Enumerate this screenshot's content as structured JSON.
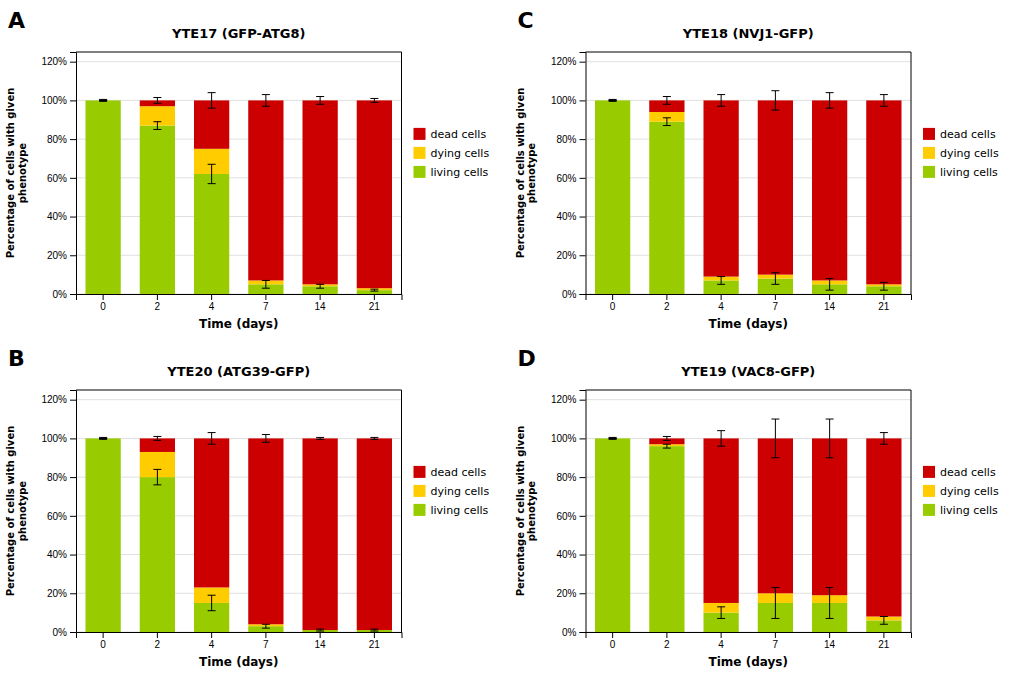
{
  "chart_data": [
    {
      "type": "bar",
      "stacked": true,
      "title": "YTE17 (GFP-ATG8)",
      "annotations": [
        "A"
      ],
      "xlabel": "Time (days)",
      "ylabel": "Percentage of cells with given\nphenotype",
      "categories": [
        "0",
        "2",
        "4",
        "7",
        "14",
        "21"
      ],
      "series": [
        {
          "name": "living cells",
          "color": "#99cc00",
          "values": [
            100,
            87,
            62,
            5,
            4,
            2
          ],
          "errors": [
            0,
            2,
            5,
            2,
            1,
            0.5
          ]
        },
        {
          "name": "dying cells",
          "color": "#ffcc00",
          "values": [
            0,
            10,
            13,
            2,
            1,
            1
          ]
        },
        {
          "name": "dead cells",
          "color": "#cc0000",
          "values": [
            0,
            3,
            25,
            93,
            95,
            97
          ],
          "errors": [
            0.5,
            1.5,
            4,
            3,
            2,
            1
          ]
        }
      ],
      "ylim": [
        0,
        125
      ],
      "yticks": [
        {
          "value": 0,
          "label": "0%"
        },
        {
          "value": 20,
          "label": "20%"
        },
        {
          "value": 40,
          "label": "40%"
        },
        {
          "value": 60,
          "label": "60%"
        },
        {
          "value": 80,
          "label": "80%"
        },
        {
          "value": 100,
          "label": "100%"
        },
        {
          "value": 120,
          "label": "120%"
        }
      ],
      "grid": true,
      "legend": "right"
    },
    {
      "type": "bar",
      "stacked": true,
      "title": "YTE18 (NVJ1-GFP)",
      "annotations": [
        "C"
      ],
      "xlabel": "Time (days)",
      "ylabel": "Percentage of cells with given\nphenotype",
      "categories": [
        "0",
        "2",
        "4",
        "7",
        "14",
        "21"
      ],
      "series": [
        {
          "name": "living cells",
          "color": "#99cc00",
          "values": [
            100,
            89,
            7,
            8,
            5,
            4
          ],
          "errors": [
            0,
            2,
            2,
            3,
            3,
            2
          ]
        },
        {
          "name": "dying cells",
          "color": "#ffcc00",
          "values": [
            0,
            5,
            2,
            2,
            2,
            1
          ]
        },
        {
          "name": "dead cells",
          "color": "#cc0000",
          "values": [
            0,
            6,
            91,
            90,
            93,
            95
          ],
          "errors": [
            0.5,
            2,
            3,
            5,
            4,
            3
          ]
        }
      ],
      "ylim": [
        0,
        125
      ],
      "yticks": [
        {
          "value": 0,
          "label": "0%"
        },
        {
          "value": 20,
          "label": "20%"
        },
        {
          "value": 40,
          "label": "40%"
        },
        {
          "value": 60,
          "label": "60%"
        },
        {
          "value": 80,
          "label": "80%"
        },
        {
          "value": 100,
          "label": "100%"
        },
        {
          "value": 120,
          "label": "120%"
        }
      ],
      "grid": true,
      "legend": "right"
    },
    {
      "type": "bar",
      "stacked": true,
      "title": "YTE20 (ATG39-GFP)",
      "annotations": [
        "B"
      ],
      "xlabel": "Time (days)",
      "ylabel": "Percentage of cells with given\nphenotype",
      "categories": [
        "0",
        "2",
        "4",
        "7",
        "14",
        "21"
      ],
      "series": [
        {
          "name": "living cells",
          "color": "#99cc00",
          "values": [
            100,
            80,
            15,
            3,
            1,
            1
          ],
          "errors": [
            0,
            4,
            4,
            1,
            0.5,
            0.5
          ]
        },
        {
          "name": "dying cells",
          "color": "#ffcc00",
          "values": [
            0,
            13,
            8,
            1,
            0,
            0
          ]
        },
        {
          "name": "dead cells",
          "color": "#cc0000",
          "values": [
            0,
            7,
            77,
            96,
            99,
            99
          ],
          "errors": [
            0.5,
            1,
            3,
            2,
            0.5,
            0.5
          ]
        }
      ],
      "ylim": [
        0,
        125
      ],
      "yticks": [
        {
          "value": 0,
          "label": "0%"
        },
        {
          "value": 20,
          "label": "20%"
        },
        {
          "value": 40,
          "label": "40%"
        },
        {
          "value": 60,
          "label": "60%"
        },
        {
          "value": 80,
          "label": "80%"
        },
        {
          "value": 100,
          "label": "100%"
        },
        {
          "value": 120,
          "label": "120%"
        }
      ],
      "grid": true,
      "legend": "right"
    },
    {
      "type": "bar",
      "stacked": true,
      "title": "YTE19 (VAC8-GFP)",
      "annotations": [
        "D"
      ],
      "xlabel": "Time (days)",
      "ylabel": "Percentage of cells with given\nphenotype",
      "categories": [
        "0",
        "2",
        "4",
        "7",
        "14",
        "21"
      ],
      "series": [
        {
          "name": "living cells",
          "color": "#99cc00",
          "values": [
            100,
            96,
            10,
            15,
            15,
            6
          ],
          "errors": [
            0,
            1,
            3,
            8,
            8,
            2
          ]
        },
        {
          "name": "dying cells",
          "color": "#ffcc00",
          "values": [
            0,
            1,
            5,
            5,
            4,
            2
          ]
        },
        {
          "name": "dead cells",
          "color": "#cc0000",
          "values": [
            0,
            3,
            85,
            80,
            81,
            92
          ],
          "errors": [
            0.5,
            1,
            4,
            10,
            10,
            3
          ]
        }
      ],
      "ylim": [
        0,
        125
      ],
      "yticks": [
        {
          "value": 0,
          "label": "0%"
        },
        {
          "value": 20,
          "label": "20%"
        },
        {
          "value": 40,
          "label": "40%"
        },
        {
          "value": 60,
          "label": "60%"
        },
        {
          "value": 80,
          "label": "80%"
        },
        {
          "value": 100,
          "label": "100%"
        },
        {
          "value": 120,
          "label": "120%"
        }
      ],
      "grid": true,
      "legend": "right"
    }
  ]
}
